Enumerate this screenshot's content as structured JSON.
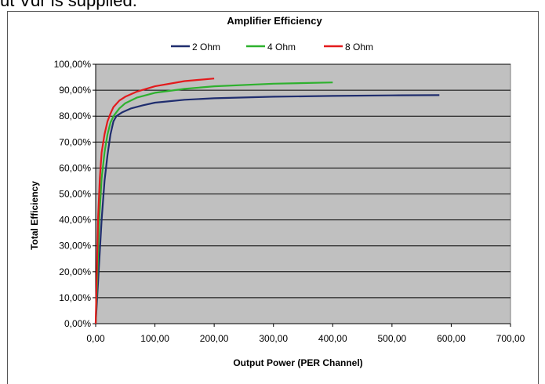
{
  "page": {
    "top_text": "ut Vdr is supplied."
  },
  "chart_data": {
    "type": "line",
    "title": "Amplifier  Efficiency",
    "xlabel": "Output Power (PER Channel)",
    "ylabel": "Total Efficiency",
    "xlim": [
      0,
      700
    ],
    "ylim": [
      0,
      1
    ],
    "x_ticks": [
      "0,00",
      "100,00",
      "200,00",
      "300,00",
      "400,00",
      "500,00",
      "600,00",
      "700,00"
    ],
    "y_ticks": [
      "0,00%",
      "10,00%",
      "20,00%",
      "30,00%",
      "40,00%",
      "50,00%",
      "60,00%",
      "70,00%",
      "80,00%",
      "90,00%",
      "100,00%"
    ],
    "grid": "horizontal",
    "plot_background": "#c0c0c0",
    "legend_position": "top",
    "series": [
      {
        "name": "2 Ohm",
        "color": "#1f2d6e",
        "points": [
          [
            0,
            0
          ],
          [
            5,
            0.2
          ],
          [
            10,
            0.4
          ],
          [
            15,
            0.55
          ],
          [
            20,
            0.65
          ],
          [
            25,
            0.73
          ],
          [
            30,
            0.78
          ],
          [
            35,
            0.8
          ],
          [
            45,
            0.815
          ],
          [
            60,
            0.83
          ],
          [
            80,
            0.842
          ],
          [
            100,
            0.852
          ],
          [
            150,
            0.863
          ],
          [
            200,
            0.869
          ],
          [
            300,
            0.875
          ],
          [
            400,
            0.878
          ],
          [
            500,
            0.88
          ],
          [
            580,
            0.881
          ]
        ]
      },
      {
        "name": "4 Ohm",
        "color": "#2eb12e",
        "points": [
          [
            0,
            0
          ],
          [
            3,
            0.2
          ],
          [
            6,
            0.4
          ],
          [
            10,
            0.56
          ],
          [
            15,
            0.66
          ],
          [
            20,
            0.73
          ],
          [
            25,
            0.775
          ],
          [
            30,
            0.8
          ],
          [
            40,
            0.83
          ],
          [
            50,
            0.85
          ],
          [
            70,
            0.872
          ],
          [
            100,
            0.89
          ],
          [
            150,
            0.905
          ],
          [
            200,
            0.915
          ],
          [
            300,
            0.925
          ],
          [
            400,
            0.93
          ]
        ]
      },
      {
        "name": "8 Ohm",
        "color": "#e31a1c",
        "points": [
          [
            0,
            0
          ],
          [
            2,
            0.2
          ],
          [
            4,
            0.4
          ],
          [
            7,
            0.56
          ],
          [
            10,
            0.66
          ],
          [
            15,
            0.73
          ],
          [
            20,
            0.78
          ],
          [
            25,
            0.81
          ],
          [
            30,
            0.835
          ],
          [
            40,
            0.86
          ],
          [
            50,
            0.875
          ],
          [
            70,
            0.895
          ],
          [
            100,
            0.915
          ],
          [
            150,
            0.935
          ],
          [
            200,
            0.945
          ]
        ]
      }
    ]
  }
}
